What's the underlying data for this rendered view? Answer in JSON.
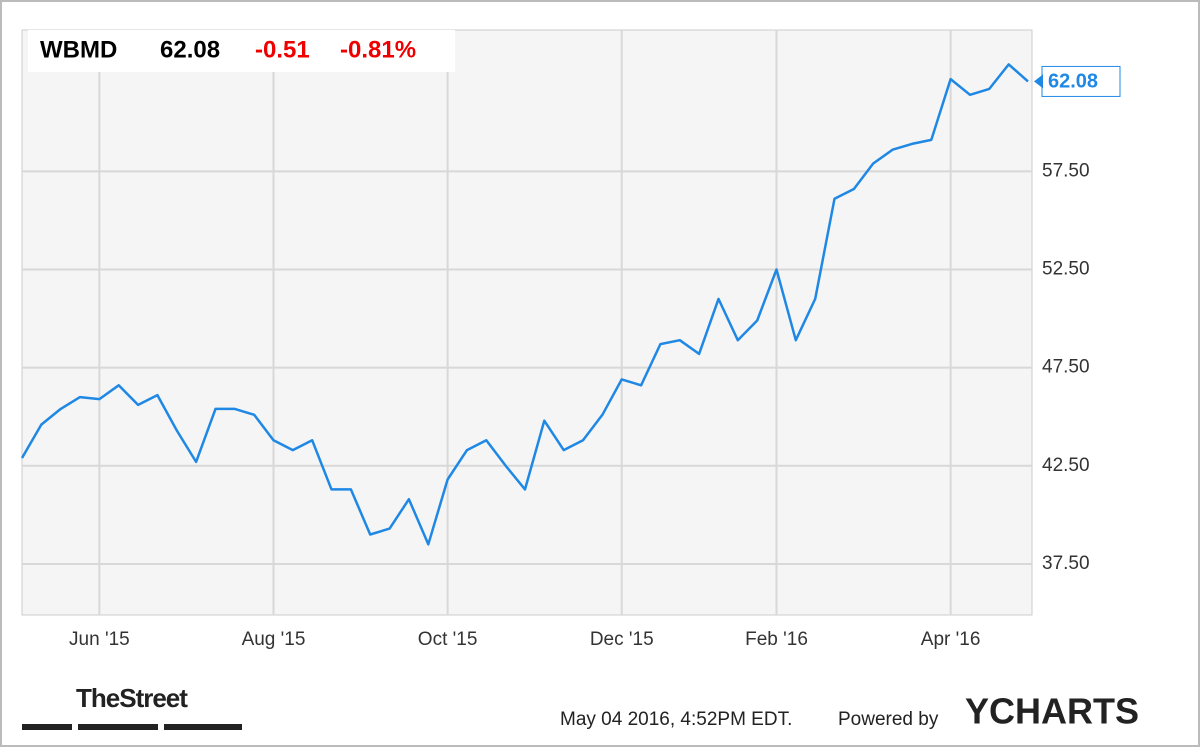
{
  "chart_data": {
    "type": "line",
    "ticker": "WBMD",
    "price": 62.08,
    "change": -0.51,
    "change_percent": "-0.81%",
    "categories": [
      "",
      null,
      null,
      null,
      "Jun '15",
      null,
      null,
      null,
      null,
      null,
      null,
      null,
      null,
      "Aug '15",
      null,
      null,
      null,
      null,
      null,
      null,
      null,
      null,
      "Oct '15",
      null,
      null,
      null,
      null,
      null,
      null,
      null,
      null,
      "Dec '15",
      null,
      null,
      null,
      null,
      null,
      null,
      null,
      "Feb '16",
      null,
      null,
      null,
      null,
      null,
      null,
      null,
      null,
      "Apr '16",
      null,
      null,
      null,
      null
    ],
    "series": [
      {
        "name": "WBMD",
        "color": "#1f88e5",
        "values": [
          42.9,
          44.6,
          45.4,
          46.0,
          45.9,
          46.6,
          45.6,
          46.1,
          44.3,
          42.7,
          45.4,
          45.4,
          45.1,
          43.8,
          43.3,
          43.8,
          41.3,
          41.3,
          39.0,
          39.3,
          40.8,
          38.5,
          41.8,
          43.3,
          43.8,
          42.5,
          41.3,
          44.8,
          43.3,
          43.8,
          45.1,
          46.9,
          46.6,
          48.7,
          48.9,
          48.2,
          51.0,
          48.9,
          49.9,
          52.5,
          48.9,
          51.0,
          56.1,
          56.6,
          57.9,
          58.6,
          58.9,
          59.1,
          62.2,
          61.4,
          61.7,
          62.95,
          62.08
        ]
      }
    ],
    "ylim": [
      34.9,
      64.7
    ],
    "yticks": [
      {
        "value": 37.5,
        "label": "37.50"
      },
      {
        "value": 42.5,
        "label": "42.50"
      },
      {
        "value": 47.5,
        "label": "47.50"
      },
      {
        "value": 52.5,
        "label": "52.50"
      },
      {
        "value": 57.5,
        "label": "57.50"
      }
    ],
    "grid": true,
    "source": "TheStreet",
    "timestamp": "May 04 2016, 4:52PM EDT.",
    "powered_by": "Powered by",
    "brand": "YCHARTS"
  }
}
